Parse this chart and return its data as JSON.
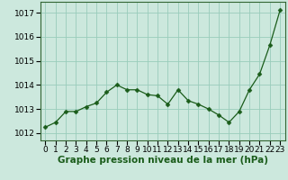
{
  "x": [
    0,
    1,
    2,
    3,
    4,
    5,
    6,
    7,
    8,
    9,
    10,
    11,
    12,
    13,
    14,
    15,
    16,
    17,
    18,
    19,
    20,
    21,
    22,
    23
  ],
  "y": [
    1012.25,
    1012.45,
    1012.9,
    1012.9,
    1013.1,
    1013.25,
    1013.7,
    1014.0,
    1013.8,
    1013.8,
    1013.6,
    1013.55,
    1013.2,
    1013.8,
    1013.35,
    1013.2,
    1013.0,
    1012.75,
    1012.45,
    1012.9,
    1013.8,
    1014.45,
    1015.65,
    1017.1
  ],
  "line_color": "#1a5c1a",
  "marker_color": "#1a5c1a",
  "bg_color": "#cce8dd",
  "grid_color": "#99ccbb",
  "title": "Graphe pression niveau de la mer (hPa)",
  "ylabel_ticks": [
    1012,
    1013,
    1014,
    1015,
    1016,
    1017
  ],
  "ylim": [
    1011.7,
    1017.45
  ],
  "xlim": [
    -0.5,
    23.5
  ],
  "tick_fontsize": 6.5,
  "title_fontsize": 7.5,
  "marker_size": 2.5,
  "line_width": 0.9
}
